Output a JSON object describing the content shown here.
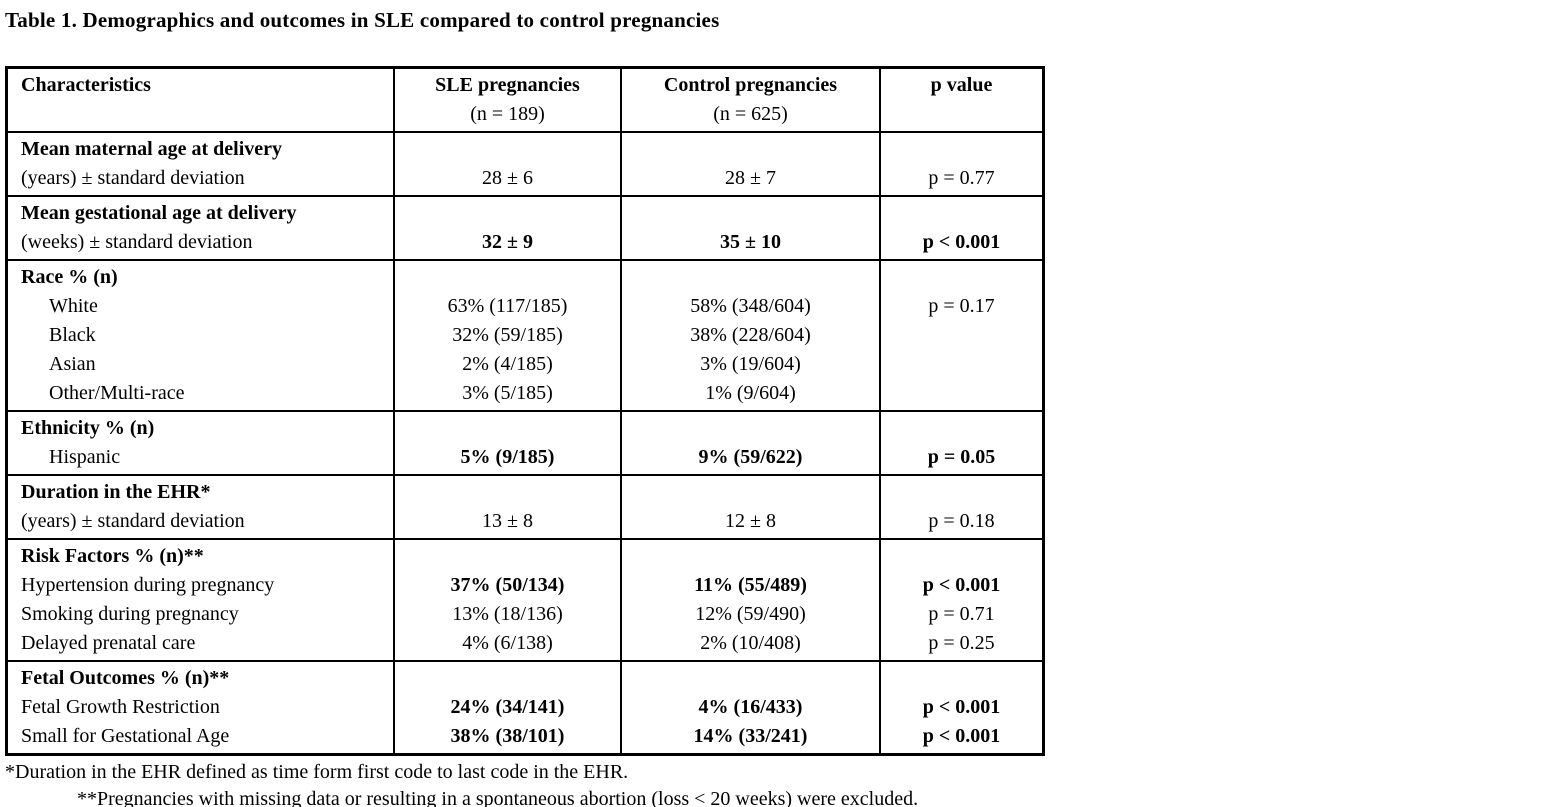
{
  "title": "Table 1. Demographics and outcomes in SLE compared to control pregnancies",
  "colors": {
    "text": "#000000",
    "background": "#ffffff",
    "border": "#000000"
  },
  "table": {
    "header": {
      "label": [
        {
          "text": "Characteristics",
          "bold": true
        }
      ],
      "sle": [
        {
          "text": "SLE pregnancies",
          "bold": true
        },
        {
          "text": "(n = 189)"
        }
      ],
      "control": [
        {
          "text": "Control pregnancies",
          "bold": true
        },
        {
          "text": "(n = 625)"
        }
      ],
      "p": [
        {
          "text": "p value",
          "bold": true
        }
      ]
    },
    "sections": [
      {
        "name": "mean-maternal-age-at-delivery",
        "label": [
          {
            "text": "Mean maternal age at delivery",
            "bold": true
          },
          {
            "text": "(years) ± standard deviation"
          }
        ],
        "sle": [
          {
            "text": ""
          },
          {
            "text": "28 ± 6"
          }
        ],
        "control": [
          {
            "text": ""
          },
          {
            "text": "28 ± 7"
          }
        ],
        "p": [
          {
            "text": ""
          },
          {
            "text": "p = 0.77"
          }
        ]
      },
      {
        "name": "mean-gestational-age-at-delivery",
        "label": [
          {
            "text": "Mean gestational age at delivery",
            "bold": true
          },
          {
            "text": "(weeks) ± standard deviation"
          }
        ],
        "sle": [
          {
            "text": ""
          },
          {
            "text": "32 ± 9",
            "bold": true
          }
        ],
        "control": [
          {
            "text": ""
          },
          {
            "text": "35 ± 10",
            "bold": true
          }
        ],
        "p": [
          {
            "text": ""
          },
          {
            "text": "p < 0.001",
            "bold": true
          }
        ]
      },
      {
        "name": "race",
        "label": [
          {
            "text": "Race % (n)",
            "bold": true
          },
          {
            "text": "White",
            "indent": true
          },
          {
            "text": "Black",
            "indent": true
          },
          {
            "text": "Asian",
            "indent": true
          },
          {
            "text": "Other/Multi-race",
            "indent": true
          }
        ],
        "sle": [
          {
            "text": ""
          },
          {
            "text": "63% (117/185)"
          },
          {
            "text": "32% (59/185)"
          },
          {
            "text": "2% (4/185)"
          },
          {
            "text": "3% (5/185)"
          }
        ],
        "control": [
          {
            "text": ""
          },
          {
            "text": "58% (348/604)"
          },
          {
            "text": "38% (228/604)"
          },
          {
            "text": "3% (19/604)"
          },
          {
            "text": "1% (9/604)"
          }
        ],
        "p": [
          {
            "text": ""
          },
          {
            "text": "p = 0.17"
          }
        ]
      },
      {
        "name": "ethnicity",
        "label": [
          {
            "text": "Ethnicity % (n)",
            "bold": true
          },
          {
            "text": "Hispanic",
            "indent": true
          }
        ],
        "sle": [
          {
            "text": ""
          },
          {
            "text": "5% (9/185)",
            "bold": true
          }
        ],
        "control": [
          {
            "text": ""
          },
          {
            "text": "9% (59/622)",
            "bold": true
          }
        ],
        "p": [
          {
            "text": ""
          },
          {
            "text": "p = 0.05",
            "bold": true
          }
        ]
      },
      {
        "name": "duration-in-the-ehr",
        "label": [
          {
            "text": "Duration in the EHR*",
            "bold": true
          },
          {
            "text": "(years) ± standard deviation"
          }
        ],
        "sle": [
          {
            "text": ""
          },
          {
            "text": "13 ± 8"
          }
        ],
        "control": [
          {
            "text": ""
          },
          {
            "text": "12 ± 8"
          }
        ],
        "p": [
          {
            "text": ""
          },
          {
            "text": "p = 0.18"
          }
        ]
      },
      {
        "name": "risk-factors",
        "label": [
          {
            "text": "Risk Factors % (n)**",
            "bold": true
          },
          {
            "text": "Hypertension during pregnancy"
          },
          {
            "text": "Smoking during pregnancy"
          },
          {
            "text": "Delayed prenatal care"
          }
        ],
        "sle": [
          {
            "text": ""
          },
          {
            "text": "37% (50/134)",
            "bold": true
          },
          {
            "text": "13% (18/136)"
          },
          {
            "text": "4% (6/138)"
          }
        ],
        "control": [
          {
            "text": ""
          },
          {
            "text": "11% (55/489)",
            "bold": true
          },
          {
            "text": "12% (59/490)"
          },
          {
            "text": "2% (10/408)"
          }
        ],
        "p": [
          {
            "text": ""
          },
          {
            "text": "p < 0.001",
            "bold": true
          },
          {
            "text": "p = 0.71"
          },
          {
            "text": "p = 0.25"
          }
        ]
      },
      {
        "name": "fetal-outcomes",
        "label": [
          {
            "text": "Fetal Outcomes % (n)**",
            "bold": true
          },
          {
            "text": "Fetal Growth Restriction"
          },
          {
            "text": "Small for Gestational Age"
          }
        ],
        "sle": [
          {
            "text": ""
          },
          {
            "text": "24% (34/141)",
            "bold": true
          },
          {
            "text": "38% (38/101)",
            "bold": true
          }
        ],
        "control": [
          {
            "text": ""
          },
          {
            "text": "4% (16/433)",
            "bold": true
          },
          {
            "text": "14% (33/241)",
            "bold": true
          }
        ],
        "p": [
          {
            "text": ""
          },
          {
            "text": "p < 0.001",
            "bold": true
          },
          {
            "text": "p < 0.001",
            "bold": true
          }
        ]
      }
    ]
  },
  "footnotes": [
    {
      "text": "*Duration in the EHR defined as time form first code to last code in the EHR."
    },
    {
      "text": "**Pregnancies with missing data or resulting in a spontaneous abortion (loss < 20 weeks) were excluded."
    }
  ]
}
